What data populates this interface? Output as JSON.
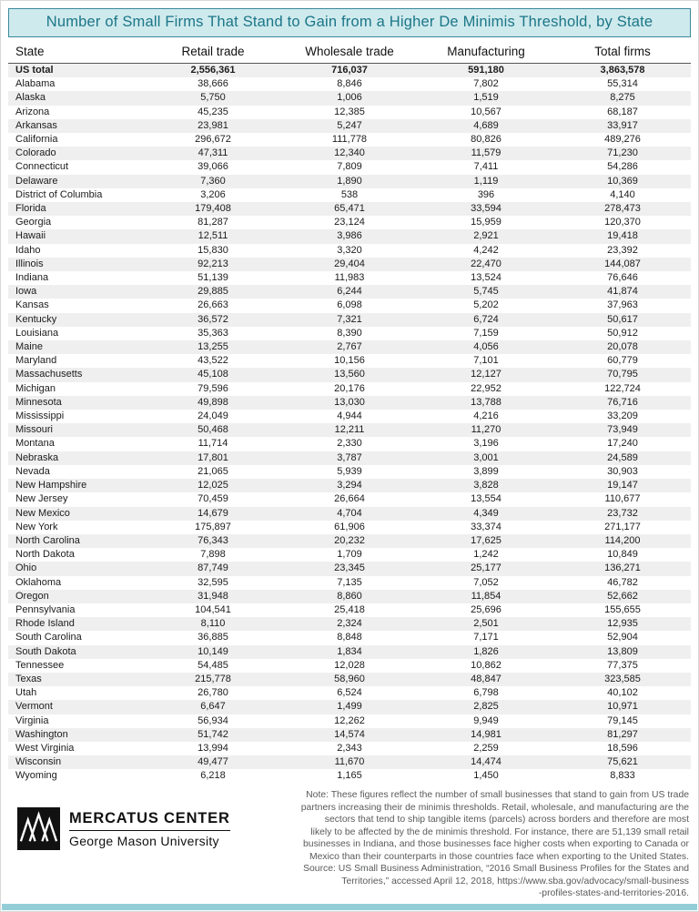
{
  "title": "Number of Small Firms That Stand to Gain from a Higher De Minimis Threshold, by State",
  "colors": {
    "title_bg": "#cfeaed",
    "title_border": "#3a8a9c",
    "title_text": "#1b7688",
    "stripe": "#efefef",
    "note_text": "#58595b",
    "bottom_bar": "#93ced8"
  },
  "chart_data": {
    "type": "table",
    "title": "Number of Small Firms That Stand to Gain from a Higher De Minimis Threshold, by State",
    "columns": [
      "State",
      "Retail trade",
      "Wholesale trade",
      "Manufacturing",
      "Total firms"
    ],
    "rows": [
      [
        "US total",
        "2,556,361",
        "716,037",
        "591,180",
        "3,863,578"
      ],
      [
        "Alabama",
        "38,666",
        "8,846",
        "7,802",
        "55,314"
      ],
      [
        "Alaska",
        "5,750",
        "1,006",
        "1,519",
        "8,275"
      ],
      [
        "Arizona",
        "45,235",
        "12,385",
        "10,567",
        "68,187"
      ],
      [
        "Arkansas",
        "23,981",
        "5,247",
        "4,689",
        "33,917"
      ],
      [
        "California",
        "296,672",
        "111,778",
        "80,826",
        "489,276"
      ],
      [
        "Colorado",
        "47,311",
        "12,340",
        "11,579",
        "71,230"
      ],
      [
        "Connecticut",
        "39,066",
        "7,809",
        "7,411",
        "54,286"
      ],
      [
        "Delaware",
        "7,360",
        "1,890",
        "1,119",
        "10,369"
      ],
      [
        "District of Columbia",
        "3,206",
        "538",
        "396",
        "4,140"
      ],
      [
        "Florida",
        "179,408",
        "65,471",
        "33,594",
        "278,473"
      ],
      [
        "Georgia",
        "81,287",
        "23,124",
        "15,959",
        "120,370"
      ],
      [
        "Hawaii",
        "12,511",
        "3,986",
        "2,921",
        "19,418"
      ],
      [
        "Idaho",
        "15,830",
        "3,320",
        "4,242",
        "23,392"
      ],
      [
        "Illinois",
        "92,213",
        "29,404",
        "22,470",
        "144,087"
      ],
      [
        "Indiana",
        "51,139",
        "11,983",
        "13,524",
        "76,646"
      ],
      [
        "Iowa",
        "29,885",
        "6,244",
        "5,745",
        "41,874"
      ],
      [
        "Kansas",
        "26,663",
        "6,098",
        "5,202",
        "37,963"
      ],
      [
        "Kentucky",
        "36,572",
        "7,321",
        "6,724",
        "50,617"
      ],
      [
        "Louisiana",
        "35,363",
        "8,390",
        "7,159",
        "50,912"
      ],
      [
        "Maine",
        "13,255",
        "2,767",
        "4,056",
        "20,078"
      ],
      [
        "Maryland",
        "43,522",
        "10,156",
        "7,101",
        "60,779"
      ],
      [
        "Massachusetts",
        "45,108",
        "13,560",
        "12,127",
        "70,795"
      ],
      [
        "Michigan",
        "79,596",
        "20,176",
        "22,952",
        "122,724"
      ],
      [
        "Minnesota",
        "49,898",
        "13,030",
        "13,788",
        "76,716"
      ],
      [
        "Mississippi",
        "24,049",
        "4,944",
        "4,216",
        "33,209"
      ],
      [
        "Missouri",
        "50,468",
        "12,211",
        "11,270",
        "73,949"
      ],
      [
        "Montana",
        "11,714",
        "2,330",
        "3,196",
        "17,240"
      ],
      [
        "Nebraska",
        "17,801",
        "3,787",
        "3,001",
        "24,589"
      ],
      [
        "Nevada",
        "21,065",
        "5,939",
        "3,899",
        "30,903"
      ],
      [
        "New Hampshire",
        "12,025",
        "3,294",
        "3,828",
        "19,147"
      ],
      [
        "New Jersey",
        "70,459",
        "26,664",
        "13,554",
        "110,677"
      ],
      [
        "New Mexico",
        "14,679",
        "4,704",
        "4,349",
        "23,732"
      ],
      [
        "New York",
        "175,897",
        "61,906",
        "33,374",
        "271,177"
      ],
      [
        "North Carolina",
        "76,343",
        "20,232",
        "17,625",
        "114,200"
      ],
      [
        "North Dakota",
        "7,898",
        "1,709",
        "1,242",
        "10,849"
      ],
      [
        "Ohio",
        "87,749",
        "23,345",
        "25,177",
        "136,271"
      ],
      [
        "Oklahoma",
        "32,595",
        "7,135",
        "7,052",
        "46,782"
      ],
      [
        "Oregon",
        "31,948",
        "8,860",
        "11,854",
        "52,662"
      ],
      [
        "Pennsylvania",
        "104,541",
        "25,418",
        "25,696",
        "155,655"
      ],
      [
        "Rhode Island",
        "8,110",
        "2,324",
        "2,501",
        "12,935"
      ],
      [
        "South Carolina",
        "36,885",
        "8,848",
        "7,171",
        "52,904"
      ],
      [
        "South Dakota",
        "10,149",
        "1,834",
        "1,826",
        "13,809"
      ],
      [
        "Tennessee",
        "54,485",
        "12,028",
        "10,862",
        "77,375"
      ],
      [
        "Texas",
        "215,778",
        "58,960",
        "48,847",
        "323,585"
      ],
      [
        "Utah",
        "26,780",
        "6,524",
        "6,798",
        "40,102"
      ],
      [
        "Vermont",
        "6,647",
        "1,499",
        "2,825",
        "10,971"
      ],
      [
        "Virginia",
        "56,934",
        "12,262",
        "9,949",
        "79,145"
      ],
      [
        "Washington",
        "51,742",
        "14,574",
        "14,981",
        "81,297"
      ],
      [
        "West Virginia",
        "13,994",
        "2,343",
        "2,259",
        "18,596"
      ],
      [
        "Wisconsin",
        "49,477",
        "11,670",
        "14,474",
        "75,621"
      ],
      [
        "Wyoming",
        "6,218",
        "1,165",
        "1,450",
        "8,833"
      ]
    ]
  },
  "footer": {
    "logo": {
      "line1": "MERCATUS CENTER",
      "line2": "George Mason University"
    },
    "note_lines": [
      "Note: These figures reflect the number of small businesses that stand to gain from US trade",
      "partners increasing their de minimis thresholds. Retail, wholesale, and manufacturing are the",
      "sectors that tend to ship tangible items (parcels) across borders and therefore are most",
      "likely to be affected by the de minimis threshold. For instance, there are 51,139 small retail",
      "businesses in Indiana, and those businesses face higher costs when exporting to Canada or",
      "Mexico than their counterparts in those countries face when exporting to the United States.",
      "Source: US Small Business Administration, “2016 Small Business Profiles for the States and",
      "Territories,” accessed April 12, 2018, https://www.sba.gov/advocacy/small-business",
      "-profiles-states-and-territories-2016."
    ]
  }
}
